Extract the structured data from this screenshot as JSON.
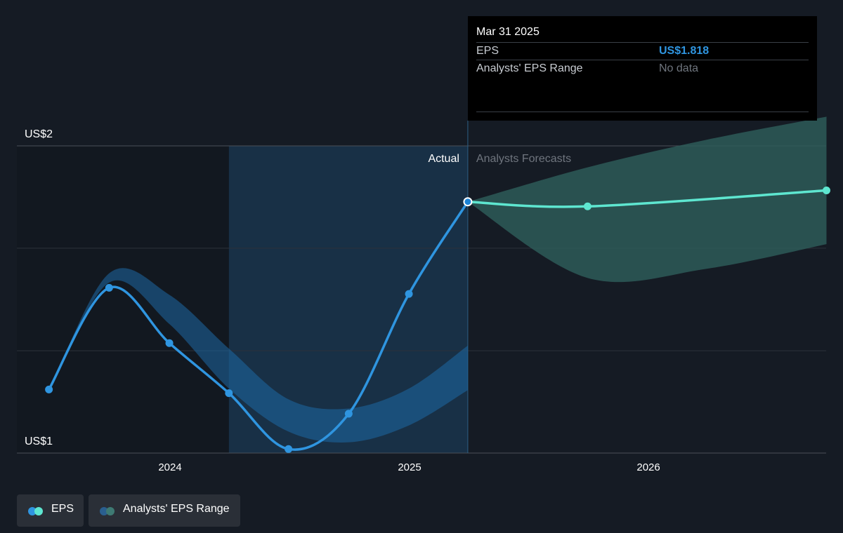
{
  "colors": {
    "background": "#151b24",
    "eps_actual": "#2f95e0",
    "eps_forecast": "#5ee6d0",
    "range_past": "#1e6aa6",
    "range_forecast": "#2e5f5b",
    "tooltip_value": "#2f95e0",
    "muted": "#6f757e"
  },
  "tooltip": {
    "date": "Mar 31 2025",
    "eps_label": "EPS",
    "eps_value": "US$1.818",
    "range_label": "Analysts' EPS Range",
    "range_value": "No data"
  },
  "legend": {
    "eps": "EPS",
    "range": "Analysts' EPS Range"
  },
  "chart_data": {
    "type": "line",
    "y_axis_labels": [
      "US$2",
      "US$1"
    ],
    "ylim": [
      1,
      2
    ],
    "x_tick_labels": [
      "2024",
      "2025",
      "2026"
    ],
    "region_labels": {
      "actual": "Actual",
      "forecast": "Analysts Forecasts"
    },
    "divider_date": "2025-03-31",
    "highlight_start": "2024-03-31",
    "grid": true,
    "series": [
      {
        "name": "EPS",
        "role": "actual",
        "points": [
          {
            "x": "2023-06-30",
            "y": 1.207
          },
          {
            "x": "2023-09-30",
            "y": 1.538
          },
          {
            "x": "2023-12-31",
            "y": 1.358
          },
          {
            "x": "2024-03-31",
            "y": 1.195
          },
          {
            "x": "2024-06-30",
            "y": 1.013
          },
          {
            "x": "2024-09-30",
            "y": 1.128
          },
          {
            "x": "2024-12-31",
            "y": 1.518
          },
          {
            "x": "2025-03-31",
            "y": 1.818
          }
        ]
      },
      {
        "name": "EPS",
        "role": "forecast",
        "points": [
          {
            "x": "2025-03-31",
            "y": 1.818
          },
          {
            "x": "2025-09-30",
            "y": 1.803
          },
          {
            "x": "2026-09-30",
            "y": 1.855
          }
        ]
      }
    ],
    "range_past": {
      "x": [
        "2023-06-30",
        "2023-09-30",
        "2023-12-31",
        "2024-03-31",
        "2024-06-30",
        "2024-09-30",
        "2024-12-31",
        "2025-03-31"
      ],
      "upper": [
        1.2,
        1.585,
        1.515,
        1.34,
        1.175,
        1.145,
        1.21,
        1.35
      ],
      "lower": [
        1.2,
        1.555,
        1.42,
        1.21,
        1.07,
        1.035,
        1.09,
        1.205
      ]
    },
    "range_forecast": {
      "x": [
        "2025-03-31",
        "2025-09-30",
        "2026-03-31",
        "2026-09-30"
      ],
      "upper": [
        1.818,
        1.93,
        2.02,
        2.095
      ],
      "lower": [
        1.818,
        1.57,
        1.6,
        1.68
      ]
    }
  }
}
